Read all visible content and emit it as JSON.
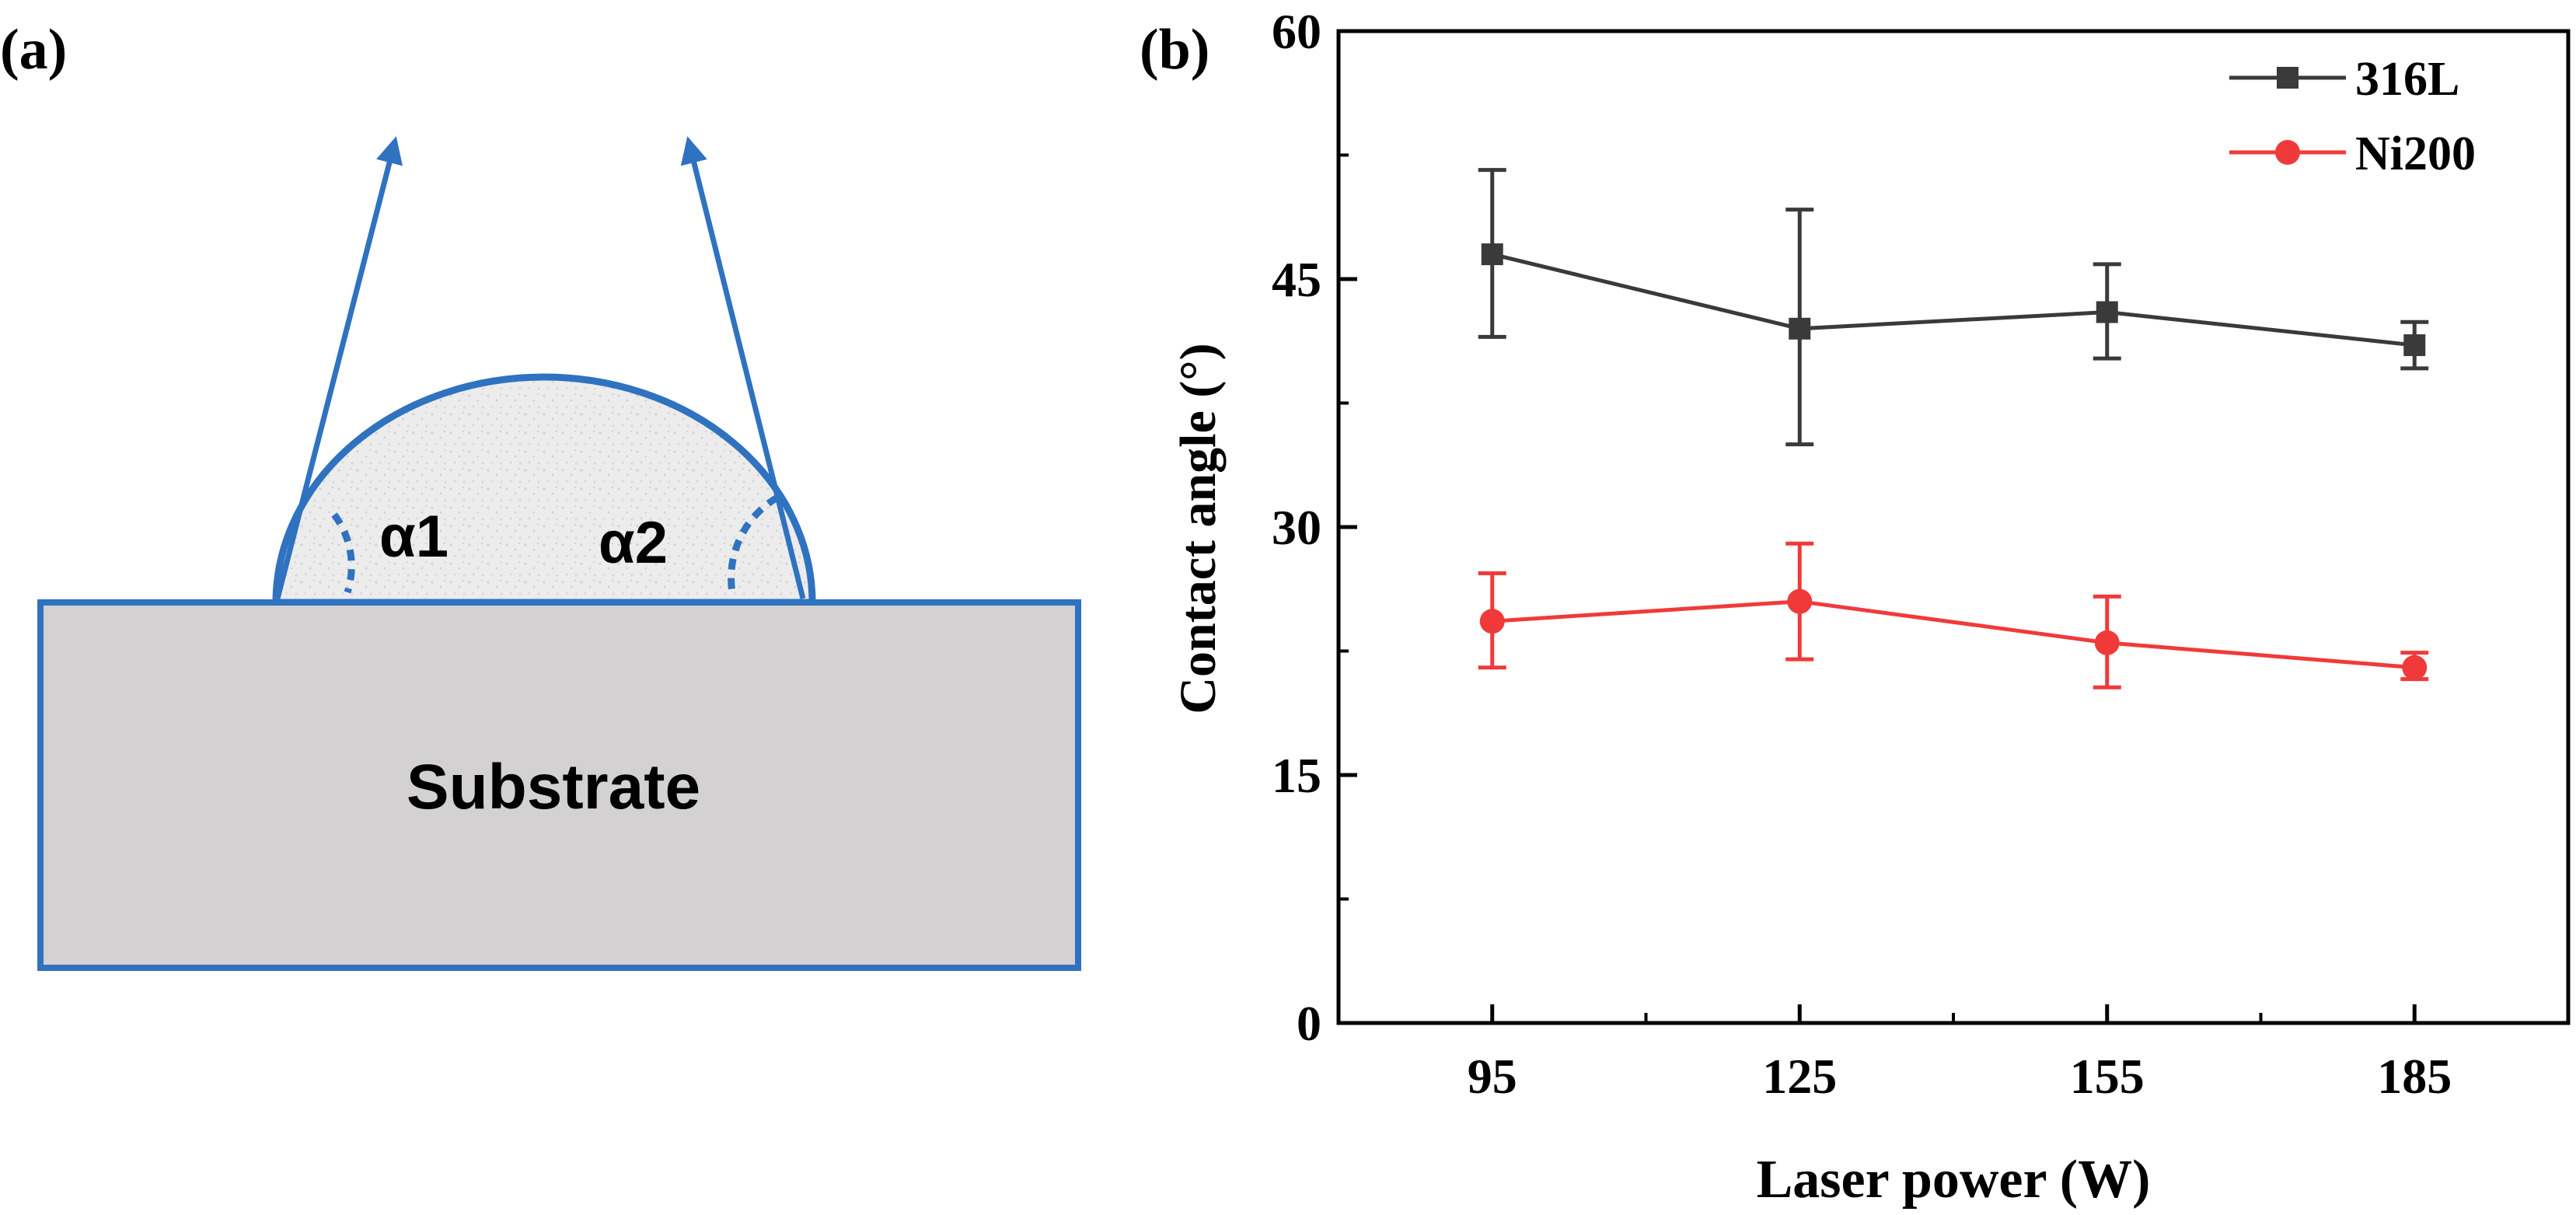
{
  "panel_a": {
    "label": "(a)",
    "substrate_label": "Substrate",
    "angle1_label": "α1",
    "angle2_label": "α2"
  },
  "panel_b": {
    "label": "(b)"
  },
  "colors": {
    "series_316L": "#3a3a3a",
    "series_Ni200": "#f03a3a",
    "diagram_blue": "#2f72c0",
    "substrate_fill": "#d3d1d2",
    "axis": "#000000"
  },
  "chart_data": {
    "type": "line",
    "title": "",
    "xlabel": "Laser power (W)",
    "ylabel": "Contact angle (°)",
    "x": [
      95,
      125,
      155,
      185
    ],
    "x_tick_labels": [
      "95",
      "125",
      "155",
      "185"
    ],
    "xlim": [
      80,
      200
    ],
    "ylim": [
      0,
      60
    ],
    "y_ticks": [
      0,
      15,
      30,
      45,
      60
    ],
    "y_tick_labels": [
      "0",
      "15",
      "30",
      "45",
      "60"
    ],
    "grid": false,
    "legend_position": "top-right",
    "series": [
      {
        "name": "316L",
        "marker": "square",
        "values": [
          46.5,
          42.0,
          43.0,
          41.0
        ],
        "error_low": [
          41.5,
          35.0,
          40.2,
          39.6
        ],
        "error_high": [
          51.6,
          49.2,
          45.9,
          42.4
        ]
      },
      {
        "name": "Ni200",
        "marker": "circle",
        "values": [
          24.3,
          25.5,
          23.0,
          21.5
        ],
        "error_low": [
          21.5,
          22.0,
          20.3,
          20.8
        ],
        "error_high": [
          27.2,
          29.0,
          25.8,
          22.4
        ]
      }
    ]
  }
}
